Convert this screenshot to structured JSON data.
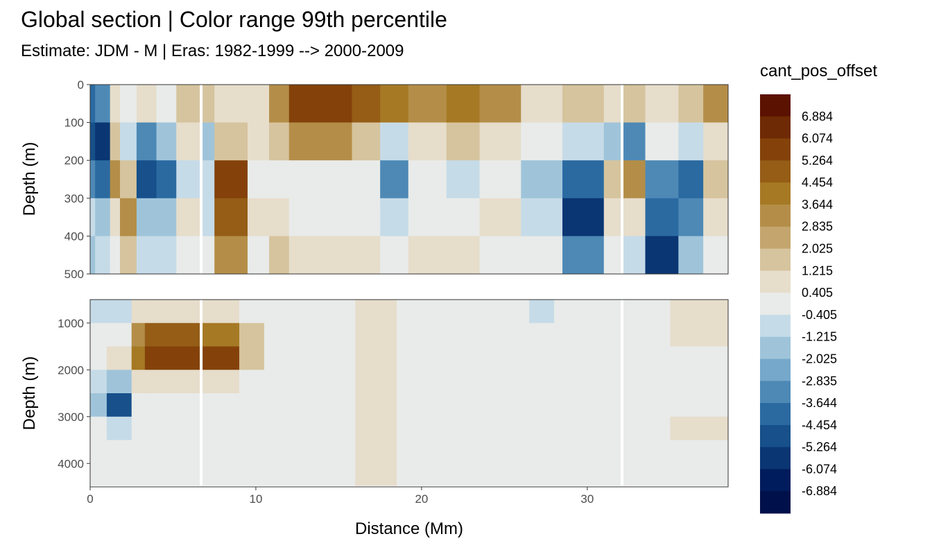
{
  "chart_data": {
    "type": "heatmap",
    "title": "Global section | Color range 99th percentile",
    "subtitle": "Estimate: JDM - M | Eras: 1982-1999 --> 2000-2009",
    "xlabel": "Distance (Mm)",
    "ylabel": "Depth (m)",
    "xlim": [
      0,
      38.5
    ],
    "x_ticks": [
      0,
      10,
      20,
      30
    ],
    "x_tick_labels": [
      "0",
      "10",
      "20",
      "30"
    ],
    "grid": true,
    "legend_placement": "right",
    "panels": [
      {
        "name": "upper",
        "ylim": [
          0,
          500
        ],
        "y_ticks": [
          0,
          100,
          200,
          300,
          400,
          500
        ],
        "y_tick_labels": [
          "0",
          "100",
          "200",
          "300",
          "400",
          "500"
        ]
      },
      {
        "name": "lower",
        "ylim": [
          500,
          4500
        ],
        "y_ticks": [
          1000,
          2000,
          3000,
          4000
        ],
        "y_tick_labels": [
          "1000",
          "2000",
          "3000",
          "4000"
        ]
      }
    ],
    "legend": {
      "title": "cant_pos_offset",
      "labels": [
        "6.884",
        "6.074",
        "5.264",
        "4.454",
        "3.644",
        "2.835",
        "2.025",
        "1.215",
        "0.405",
        "-0.405",
        "-1.215",
        "-2.025",
        "-2.835",
        "-3.644",
        "-4.454",
        "-5.264",
        "-6.074",
        "-6.884"
      ],
      "colors": [
        "#5c1200",
        "#6e2a04",
        "#84420a",
        "#955d16",
        "#a67924",
        "#b48e48",
        "#c4a56e",
        "#d6c49e",
        "#e6ddcb",
        "#e8ebe9",
        "#c6dbe8",
        "#9fc4da",
        "#75a8cb",
        "#4e89b6",
        "#2b6aa1",
        "#17508a",
        "#0a3673",
        "#001c5c",
        "#00104a"
      ]
    },
    "gaps_x": [
      6.7,
      32.1
    ],
    "upper_columns": [
      {
        "x0": 0.0,
        "x1": 0.3,
        "v": [
          -4,
          -5,
          -3,
          -1,
          -2
        ]
      },
      {
        "x0": 0.3,
        "x1": 1.2,
        "v": [
          -3,
          -6,
          -4,
          -2,
          -1
        ]
      },
      {
        "x0": 1.2,
        "x1": 1.8,
        "v": [
          1,
          2,
          3,
          1,
          0
        ]
      },
      {
        "x0": 1.8,
        "x1": 2.8,
        "v": [
          0,
          -1,
          2,
          3,
          2
        ]
      },
      {
        "x0": 2.8,
        "x1": 4.0,
        "v": [
          1,
          -3,
          -5,
          -2,
          -1
        ]
      },
      {
        "x0": 4.0,
        "x1": 5.2,
        "v": [
          0,
          -2,
          -4,
          -2,
          -1
        ]
      },
      {
        "x0": 5.2,
        "x1": 6.7,
        "v": [
          2,
          1,
          -1,
          1,
          0
        ]
      },
      {
        "x0": 6.7,
        "x1": 7.5,
        "v": [
          2,
          -2,
          -1,
          -1,
          0
        ]
      },
      {
        "x0": 7.5,
        "x1": 9.5,
        "v": [
          1,
          2,
          6,
          5,
          3
        ]
      },
      {
        "x0": 9.5,
        "x1": 10.8,
        "v": [
          1,
          1,
          0,
          1,
          0
        ]
      },
      {
        "x0": 10.8,
        "x1": 12.0,
        "v": [
          3,
          2,
          0,
          1,
          2
        ]
      },
      {
        "x0": 12.0,
        "x1": 15.8,
        "v": [
          6,
          3,
          0,
          0,
          1
        ]
      },
      {
        "x0": 15.8,
        "x1": 17.5,
        "v": [
          5,
          2,
          0,
          0,
          1
        ]
      },
      {
        "x0": 17.5,
        "x1": 19.2,
        "v": [
          4,
          -1,
          -3,
          -1,
          0
        ]
      },
      {
        "x0": 19.2,
        "x1": 21.5,
        "v": [
          3,
          1,
          0,
          0,
          1
        ]
      },
      {
        "x0": 21.5,
        "x1": 23.5,
        "v": [
          4,
          2,
          -1,
          0,
          1
        ]
      },
      {
        "x0": 23.5,
        "x1": 26.0,
        "v": [
          3,
          1,
          0,
          1,
          0
        ]
      },
      {
        "x0": 26.0,
        "x1": 28.5,
        "v": [
          1,
          0,
          -2,
          -1,
          0
        ]
      },
      {
        "x0": 28.5,
        "x1": 31.0,
        "v": [
          2,
          -1,
          -4,
          -6,
          -3
        ]
      },
      {
        "x0": 31.0,
        "x1": 32.1,
        "v": [
          1,
          -2,
          2,
          1,
          0
        ]
      },
      {
        "x0": 32.1,
        "x1": 33.5,
        "v": [
          2,
          -3,
          3,
          1,
          -1
        ]
      },
      {
        "x0": 33.5,
        "x1": 35.5,
        "v": [
          1,
          0,
          -3,
          -4,
          -6
        ]
      },
      {
        "x0": 35.5,
        "x1": 37.0,
        "v": [
          2,
          -1,
          -4,
          -3,
          -2
        ]
      },
      {
        "x0": 37.0,
        "x1": 38.5,
        "v": [
          3,
          1,
          2,
          1,
          0
        ]
      }
    ],
    "lower_columns": [
      {
        "x0": 0.0,
        "x1": 1.0,
        "v": [
          -1,
          0,
          0,
          -1,
          -2,
          0,
          0,
          0
        ]
      },
      {
        "x0": 1.0,
        "x1": 2.5,
        "v": [
          -1,
          0,
          1,
          -2,
          -5,
          -1,
          0,
          0
        ]
      },
      {
        "x0": 2.5,
        "x1": 3.3,
        "v": [
          1,
          3,
          4,
          1,
          0,
          0,
          0,
          0
        ]
      },
      {
        "x0": 3.3,
        "x1": 6.7,
        "v": [
          1,
          5,
          6,
          1,
          0,
          0,
          0,
          0
        ]
      },
      {
        "x0": 6.7,
        "x1": 9.0,
        "v": [
          1,
          4,
          6,
          1,
          0,
          0,
          0,
          0
        ]
      },
      {
        "x0": 9.0,
        "x1": 10.5,
        "v": [
          0,
          2,
          2,
          0,
          0,
          0,
          0,
          0
        ]
      },
      {
        "x0": 10.5,
        "x1": 16.0,
        "v": [
          0,
          0,
          0,
          0,
          0,
          0,
          0,
          0
        ]
      },
      {
        "x0": 16.0,
        "x1": 18.5,
        "v": [
          1,
          1,
          1,
          1,
          1,
          1,
          1,
          1
        ]
      },
      {
        "x0": 18.5,
        "x1": 26.5,
        "v": [
          0,
          0,
          0,
          0,
          0,
          0,
          0,
          0
        ]
      },
      {
        "x0": 26.5,
        "x1": 28.0,
        "v": [
          -1,
          0,
          0,
          0,
          0,
          0,
          0,
          0
        ]
      },
      {
        "x0": 28.0,
        "x1": 32.1,
        "v": [
          0,
          0,
          0,
          0,
          0,
          0,
          0,
          0
        ]
      },
      {
        "x0": 32.1,
        "x1": 35.0,
        "v": [
          0,
          0,
          0,
          0,
          0,
          0,
          0,
          0
        ]
      },
      {
        "x0": 35.0,
        "x1": 38.5,
        "v": [
          1,
          1,
          0,
          0,
          0,
          1,
          0,
          0
        ]
      }
    ]
  }
}
